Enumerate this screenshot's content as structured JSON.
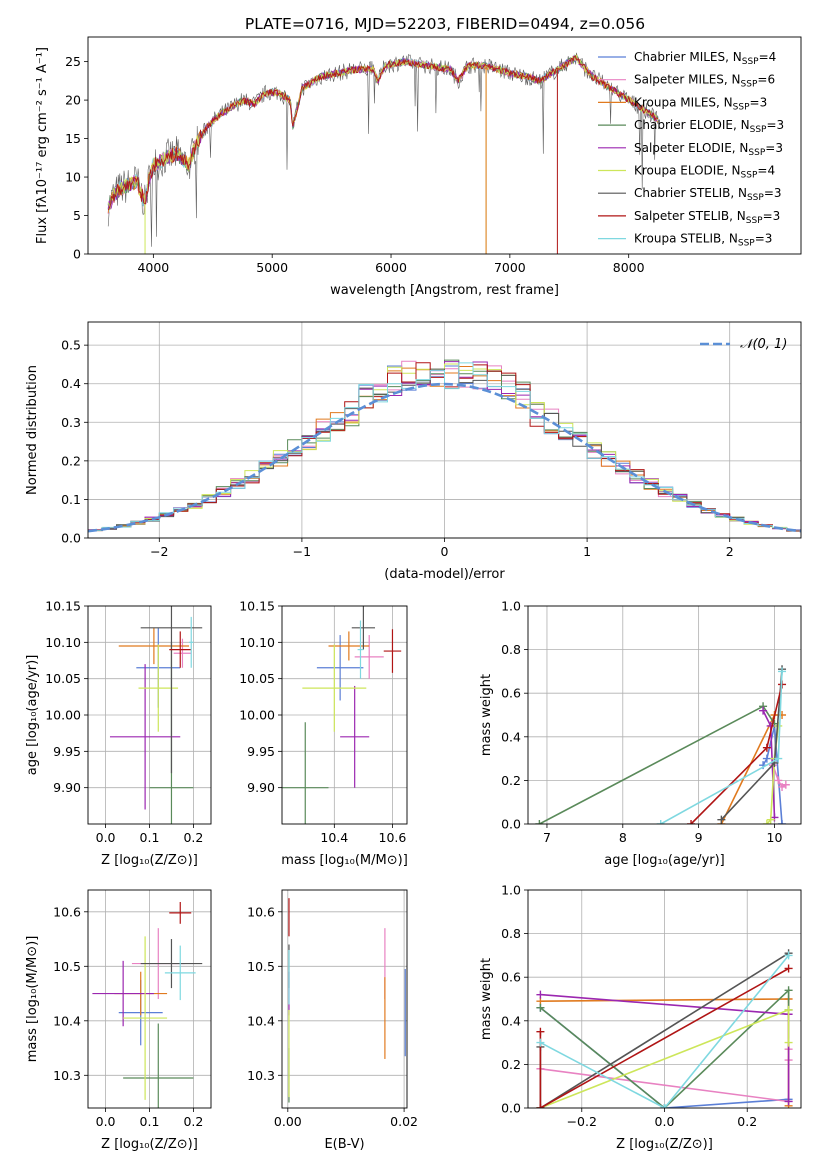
{
  "figure": {
    "title": "PLATE=0716, MJD=52203, FIBERID=0494, z=0.056"
  },
  "colors": {
    "Chabrier MILES": "#5b7fd6",
    "Salpeter MILES": "#e882c2",
    "Kroupa MILES": "#e07a1f",
    "Chabrier ELODIE": "#5a8a5a",
    "Salpeter ELODIE": "#9b27b0",
    "Kroupa ELODIE": "#cde65a",
    "Chabrier STELIB": "#555555",
    "Salpeter STELIB": "#b01515",
    "Kroupa STELIB": "#7fd8e0"
  },
  "chart_data": [
    {
      "id": "spectrum",
      "type": "line",
      "xlabel": "wavelength [Angstrom, rest frame]",
      "ylabel": "Flux [fλ10⁻¹⁷ erg cm⁻² s⁻¹ A⁻¹]",
      "xlim": [
        3450,
        9450
      ],
      "ylim": [
        0,
        28.2
      ],
      "xticks": [
        4000,
        5000,
        6000,
        7000,
        8000
      ],
      "yticks": [
        0,
        5,
        10,
        15,
        20,
        25
      ],
      "grid": false,
      "legend_position": "right",
      "continuum": [
        [
          3620,
          6
        ],
        [
          3660,
          7.5
        ],
        [
          3720,
          8.5
        ],
        [
          3800,
          9
        ],
        [
          3860,
          9.5
        ],
        [
          3930,
          6.5
        ],
        [
          3960,
          9.5
        ],
        [
          4000,
          11.5
        ],
        [
          4100,
          12.5
        ],
        [
          4200,
          13
        ],
        [
          4300,
          11.5
        ],
        [
          4350,
          14
        ],
        [
          4450,
          16.5
        ],
        [
          4550,
          18
        ],
        [
          4650,
          19
        ],
        [
          4750,
          20
        ],
        [
          4850,
          19.5
        ],
        [
          4950,
          21
        ],
        [
          5050,
          21
        ],
        [
          5150,
          20
        ],
        [
          5175,
          16.5
        ],
        [
          5250,
          21.5
        ],
        [
          5400,
          23
        ],
        [
          5550,
          23.5
        ],
        [
          5700,
          24
        ],
        [
          5850,
          24
        ],
        [
          5890,
          22.5
        ],
        [
          5950,
          24.5
        ],
        [
          6100,
          25
        ],
        [
          6300,
          24.5
        ],
        [
          6500,
          24
        ],
        [
          6563,
          22.5
        ],
        [
          6650,
          24.5
        ],
        [
          6800,
          24.5
        ],
        [
          6900,
          24
        ],
        [
          7000,
          23.5
        ],
        [
          7150,
          23
        ],
        [
          7250,
          22.5
        ],
        [
          7400,
          24
        ],
        [
          7500,
          25
        ],
        [
          7560,
          25.5
        ],
        [
          7610,
          24.5
        ],
        [
          7700,
          23
        ],
        [
          7800,
          22
        ],
        [
          7900,
          21
        ],
        [
          8000,
          20
        ],
        [
          8100,
          19
        ],
        [
          8200,
          18
        ],
        [
          8250,
          17.5
        ]
      ],
      "series": [
        {
          "name": "Chabrier MILES, N",
          "nssp": "4"
        },
        {
          "name": "Salpeter MILES, N",
          "nssp": "6"
        },
        {
          "name": "Kroupa MILES, N",
          "nssp": "3"
        },
        {
          "name": "Chabrier ELODIE, N",
          "nssp": "3"
        },
        {
          "name": "Salpeter ELODIE, N",
          "nssp": "3"
        },
        {
          "name": "Kroupa ELODIE, N",
          "nssp": "4"
        },
        {
          "name": "Chabrier STELIB, N",
          "nssp": "3"
        },
        {
          "name": "Salpeter STELIB, N",
          "nssp": "3"
        },
        {
          "name": "Kroupa STELIB, N",
          "nssp": "3"
        }
      ],
      "legend_sub": "SSP"
    },
    {
      "id": "residuals",
      "type": "line",
      "xlabel": "(data-model)/error",
      "ylabel": "Normed distribution",
      "xlim": [
        -2.5,
        2.5
      ],
      "ylim": [
        0,
        0.56
      ],
      "xticks": [
        -2,
        -1,
        0,
        1,
        2
      ],
      "yticks": [
        0.0,
        0.1,
        0.2,
        0.3,
        0.4,
        0.5
      ],
      "grid": true,
      "legend_position": "top-right",
      "reference_label": "𝒩(0, 1)",
      "bin_width": 0.1
    },
    {
      "id": "age_vs_z",
      "type": "scatter",
      "xlabel": "Z [log₁₀(Z/Z⊙)]",
      "ylabel": "age  [log₁₀(age/yr)]",
      "xlim": [
        -0.04,
        0.24
      ],
      "ylim": [
        9.85,
        10.15
      ],
      "xticks": [
        0.0,
        0.1,
        0.2
      ],
      "yticks": [
        9.9,
        9.95,
        10.0,
        10.05,
        10.1,
        10.15
      ],
      "grid": true,
      "points": [
        {
          "series": "Chabrier MILES",
          "x": 0.12,
          "xerr": 0.05,
          "y": 10.065,
          "yerr": 0.055
        },
        {
          "series": "Salpeter MILES",
          "x": 0.175,
          "xerr": 0.02,
          "y": 10.085,
          "yerr": 0.02
        },
        {
          "series": "Kroupa MILES",
          "x": 0.11,
          "xerr": 0.08,
          "y": 10.095,
          "yerr": 0.025
        },
        {
          "series": "Chabrier ELODIE",
          "x": 0.15,
          "xerr": 0.05,
          "y": 9.9,
          "yerr": 0.2
        },
        {
          "series": "Salpeter ELODIE",
          "x": 0.09,
          "xerr": 0.08,
          "y": 9.97,
          "yerr": 0.1
        },
        {
          "series": "Kroupa ELODIE",
          "x": 0.12,
          "xerr": 0.045,
          "y": 10.037,
          "yerr": 0.06
        },
        {
          "series": "Chabrier STELIB",
          "x": 0.15,
          "xerr": 0.07,
          "y": 10.12,
          "yerr": 0.2
        },
        {
          "series": "Salpeter STELIB",
          "x": 0.17,
          "xerr": 0.025,
          "y": 10.09,
          "yerr": 0.025
        },
        {
          "series": "Kroupa STELIB",
          "x": 0.195,
          "xerr": 0.005,
          "y": 10.1,
          "yerr": 0.035
        }
      ]
    },
    {
      "id": "age_vs_mass",
      "type": "scatter",
      "xlabel": "mass [log₁₀(M/M⊙)]",
      "ylabel": "",
      "xlim": [
        10.22,
        10.65
      ],
      "ylim": [
        9.85,
        10.15
      ],
      "xticks": [
        10.4,
        10.6
      ],
      "yticks": [
        9.9,
        9.95,
        10.0,
        10.05,
        10.1,
        10.15
      ],
      "grid": true,
      "points": [
        {
          "series": "Chabrier MILES",
          "x": 10.42,
          "xerr": 0.08,
          "y": 10.065,
          "yerr": 0.045
        },
        {
          "series": "Salpeter MILES",
          "x": 10.52,
          "xerr": 0.05,
          "y": 10.08,
          "yerr": 0.03
        },
        {
          "series": "Kroupa MILES",
          "x": 10.45,
          "xerr": 0.07,
          "y": 10.095,
          "yerr": 0.02
        },
        {
          "series": "Chabrier ELODIE",
          "x": 10.3,
          "xerr": 0.08,
          "y": 9.9,
          "yerr": 0.09
        },
        {
          "series": "Salpeter ELODIE",
          "x": 10.47,
          "xerr": 0.05,
          "y": 9.97,
          "yerr": 0.07
        },
        {
          "series": "Kroupa ELODIE",
          "x": 10.4,
          "xerr": 0.11,
          "y": 10.037,
          "yerr": 0.06
        },
        {
          "series": "Chabrier STELIB",
          "x": 10.5,
          "xerr": 0.04,
          "y": 10.12,
          "yerr": 0.03
        },
        {
          "series": "Salpeter STELIB",
          "x": 10.6,
          "xerr": 0.03,
          "y": 10.088,
          "yerr": 0.03
        },
        {
          "series": "Kroupa STELIB",
          "x": 10.49,
          "xerr": 0.01,
          "y": 10.09,
          "yerr": 0.04
        }
      ]
    },
    {
      "id": "weight_vs_age",
      "type": "line",
      "xlabel": "age  [log₁₀(age/yr)]",
      "ylabel": "mass weight",
      "xlim": [
        6.75,
        10.35
      ],
      "ylim": [
        0,
        1
      ],
      "xticks": [
        7,
        8,
        9,
        10
      ],
      "yticks": [
        0.0,
        0.2,
        0.4,
        0.6,
        0.8,
        1.0
      ],
      "grid": true,
      "series": [
        {
          "name": "Chabrier MILES",
          "x": [
            9.85,
            9.9,
            10.0,
            10.1
          ],
          "y": [
            0.27,
            0.3,
            0.45,
            0.0
          ]
        },
        {
          "name": "Salpeter MILES",
          "x": [
            9.98,
            10.05,
            10.1,
            10.15
          ],
          "y": [
            0.27,
            0.2,
            0.17,
            0.18
          ]
        },
        {
          "name": "Kroupa MILES",
          "x": [
            9.3,
            10.0,
            10.1
          ],
          "y": [
            0.0,
            0.5,
            0.5
          ]
        },
        {
          "name": "Chabrier ELODIE",
          "x": [
            6.9,
            9.85,
            10.0
          ],
          "y": [
            0.0,
            0.54,
            0.46
          ]
        },
        {
          "name": "Salpeter ELODIE",
          "x": [
            9.85,
            9.95,
            10.0
          ],
          "y": [
            0.52,
            0.45,
            0.03
          ]
        },
        {
          "name": "Kroupa ELODIE",
          "x": [
            9.9,
            9.95,
            10.0,
            10.05
          ],
          "y": [
            0.0,
            0.02,
            0.3,
            0.45
          ]
        },
        {
          "name": "Chabrier STELIB",
          "x": [
            9.3,
            10.0,
            10.1
          ],
          "y": [
            0.02,
            0.28,
            0.71
          ]
        },
        {
          "name": "Salpeter STELIB",
          "x": [
            8.9,
            9.9,
            10.1
          ],
          "y": [
            0.0,
            0.35,
            0.64
          ]
        },
        {
          "name": "Kroupa STELIB",
          "x": [
            8.5,
            10.05,
            10.1
          ],
          "y": [
            0.0,
            0.3,
            0.7
          ]
        }
      ]
    },
    {
      "id": "mass_vs_z",
      "type": "scatter",
      "xlabel": "Z [log₁₀(Z/Z⊙)]",
      "ylabel": "mass [log₁₀(M/M⊙)]",
      "xlim": [
        -0.04,
        0.24
      ],
      "ylim": [
        10.24,
        10.64
      ],
      "xticks": [
        0.0,
        0.1,
        0.2
      ],
      "yticks": [
        10.3,
        10.4,
        10.5,
        10.6
      ],
      "grid": true,
      "points": [
        {
          "series": "Chabrier MILES",
          "x": 0.08,
          "xerr": 0.05,
          "y": 10.415,
          "yerr": 0.06
        },
        {
          "series": "Salpeter MILES",
          "x": 0.12,
          "xerr": 0.06,
          "y": 10.505,
          "yerr": 0.065
        },
        {
          "series": "Kroupa MILES",
          "x": 0.08,
          "xerr": 0.06,
          "y": 10.45,
          "yerr": 0.04
        },
        {
          "series": "Chabrier ELODIE",
          "x": 0.12,
          "xerr": 0.08,
          "y": 10.295,
          "yerr": 0.1
        },
        {
          "series": "Salpeter ELODIE",
          "x": 0.04,
          "xerr": 0.07,
          "y": 10.45,
          "yerr": 0.06
        },
        {
          "series": "Kroupa ELODIE",
          "x": 0.09,
          "xerr": 0.05,
          "y": 10.405,
          "yerr": 0.15
        },
        {
          "series": "Chabrier STELIB",
          "x": 0.15,
          "xerr": 0.07,
          "y": 10.505,
          "yerr": 0.045
        },
        {
          "series": "Salpeter STELIB",
          "x": 0.17,
          "xerr": 0.025,
          "y": 10.598,
          "yerr": 0.02
        },
        {
          "series": "Kroupa STELIB",
          "x": 0.17,
          "xerr": 0.035,
          "y": 10.488,
          "yerr": 0.05
        }
      ]
    },
    {
      "id": "mass_vs_ebv",
      "type": "scatter",
      "xlabel": "E(B-V)",
      "ylabel": "",
      "xlim": [
        -0.001,
        0.0205
      ],
      "ylim": [
        10.24,
        10.64
      ],
      "xticks": [
        0.0,
        0.02
      ],
      "yticks": [
        10.3,
        10.4,
        10.5,
        10.6
      ],
      "grid": true,
      "points": [
        {
          "series": "Chabrier MILES",
          "x": 0.0202,
          "xerr": 0,
          "y": 10.415,
          "yerr": 0.08
        },
        {
          "series": "Salpeter MILES",
          "x": 0.0167,
          "xerr": 0,
          "y": 10.505,
          "yerr": 0.065
        },
        {
          "series": "Kroupa MILES",
          "x": 0.0167,
          "xerr": 0,
          "y": 10.405,
          "yerr": 0.075
        },
        {
          "series": "Chabrier ELODIE",
          "x": 0.0002,
          "xerr": 0,
          "y": 10.3,
          "yerr": 0.05
        },
        {
          "series": "Salpeter ELODIE",
          "x": 0.0002,
          "xerr": 0,
          "y": 10.45,
          "yerr": 0.04
        },
        {
          "series": "Kroupa ELODIE",
          "x": 0.0002,
          "xerr": 0,
          "y": 10.34,
          "yerr": 0.08
        },
        {
          "series": "Chabrier STELIB",
          "x": 0.0002,
          "xerr": 0,
          "y": 10.5,
          "yerr": 0.04
        },
        {
          "series": "Salpeter STELIB",
          "x": 0.0002,
          "xerr": 0,
          "y": 10.59,
          "yerr": 0.035
        },
        {
          "series": "Kroupa STELIB",
          "x": 0.0002,
          "xerr": 0,
          "y": 10.48,
          "yerr": 0.05
        }
      ]
    },
    {
      "id": "weight_vs_z",
      "type": "line",
      "xlabel": "Z [log₁₀(Z/Z⊙)]",
      "ylabel": "mass weight",
      "xlim": [
        -0.33,
        0.33
      ],
      "ylim": [
        0,
        1
      ],
      "xticks": [
        -0.2,
        0.0,
        0.2
      ],
      "yticks": [
        0.0,
        0.2,
        0.4,
        0.6,
        0.8,
        1.0
      ],
      "grid": true,
      "series": [
        {
          "name": "Chabrier MILES",
          "x": [
            -0.3,
            0.0,
            0.3
          ],
          "y": [
            0.46,
            0.0,
            0.04
          ]
        },
        {
          "name": "Salpeter MILES",
          "x": [
            -0.3,
            0.3,
            0.3,
            0.3
          ],
          "y": [
            0.18,
            0.03,
            0.27,
            0.22
          ]
        },
        {
          "name": "Kroupa MILES",
          "x": [
            -0.3,
            0.3,
            0.3
          ],
          "y": [
            0.49,
            0.5,
            0.01
          ]
        },
        {
          "name": "Chabrier ELODIE",
          "x": [
            -0.3,
            0.0,
            0.3,
            0.3
          ],
          "y": [
            0.46,
            0.0,
            0.54,
            0.45
          ]
        },
        {
          "name": "Salpeter ELODIE",
          "x": [
            -0.3,
            0.3,
            0.3
          ],
          "y": [
            0.52,
            0.43,
            0.03
          ]
        },
        {
          "name": "Kroupa ELODIE",
          "x": [
            -0.3,
            0.3,
            0.3
          ],
          "y": [
            0.0,
            0.45,
            0.3
          ]
        },
        {
          "name": "Chabrier STELIB",
          "x": [
            -0.3,
            -0.3,
            0.3
          ],
          "y": [
            0.28,
            0.0,
            0.71
          ]
        },
        {
          "name": "Salpeter STELIB",
          "x": [
            -0.3,
            -0.3,
            0.3
          ],
          "y": [
            0.35,
            0.0,
            0.64
          ]
        },
        {
          "name": "Kroupa STELIB",
          "x": [
            -0.3,
            0.0,
            0.3
          ],
          "y": [
            0.3,
            0.0,
            0.7
          ]
        }
      ]
    }
  ]
}
